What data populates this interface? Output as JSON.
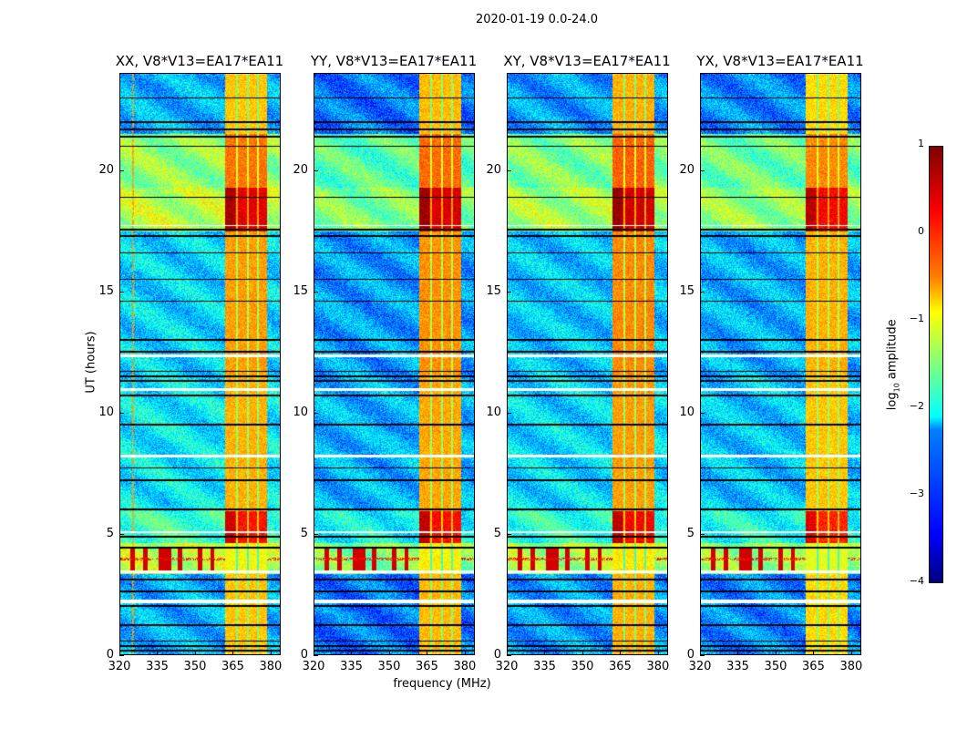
{
  "figure": {
    "title": "2020-01-19 0.0-24.0",
    "xlabel": "frequency (MHz)",
    "ylabel": "UT (hours)"
  },
  "colorbar": {
    "label": "log10 amplitude",
    "label_main": "log",
    "label_sub": "10",
    "label_rest": " amplitude",
    "ticks": [
      "1",
      "0",
      "−1",
      "−2",
      "−3",
      "−4"
    ],
    "tick_values": [
      1,
      0,
      -1,
      -2,
      -3,
      -4
    ],
    "range": [
      -4,
      1
    ],
    "colormap": "jet"
  },
  "chart_data": {
    "type": "heatmap",
    "title": "2020-01-19 0.0-24.0",
    "xlabel": "frequency (MHz)",
    "ylabel": "UT (hours)",
    "xlim": [
      320,
      384
    ],
    "ylim": [
      0,
      24
    ],
    "xticks": [
      "320",
      "335",
      "350",
      "365",
      "380"
    ],
    "xtick_values": [
      320,
      335,
      350,
      365,
      380
    ],
    "yticks": [
      "0",
      "5",
      "10",
      "15",
      "20"
    ],
    "ytick_values": [
      0,
      5,
      10,
      15,
      20
    ],
    "zlabel": "log10 amplitude",
    "zlim": [
      -4,
      1
    ],
    "rfi_band_mhz": [
      362,
      379
    ],
    "band_columns_mhz": [
      [
        362,
        366.5
      ],
      [
        367,
        371
      ],
      [
        371.5,
        375
      ],
      [
        375.5,
        379
      ]
    ],
    "time_segments": [
      {
        "hours": [
          0,
          3.3
        ],
        "background": -2.6,
        "band": -0.6
      },
      {
        "hours": [
          3.3,
          4.6
        ],
        "background": -1.3,
        "band": -0.9,
        "burst": true
      },
      {
        "hours": [
          4.6,
          5.9
        ],
        "background": -1.9,
        "band": 0.3
      },
      {
        "hours": [
          5.9,
          11.5
        ],
        "background": -2.3,
        "band": -0.5
      },
      {
        "hours": [
          11.5,
          17.5
        ],
        "background": -2.4,
        "band": -0.4
      },
      {
        "hours": [
          17.5,
          19.3
        ],
        "background": -1.3,
        "band": 0.5
      },
      {
        "hours": [
          19.3,
          21.5
        ],
        "background": -1.5,
        "band": -0.2
      },
      {
        "hours": [
          21.5,
          24
        ],
        "background": -2.6,
        "band": -0.6
      }
    ],
    "flagged_hours": [
      0.15,
      0.35,
      0.55,
      1.2,
      2.0,
      2.6,
      3.1,
      4.4,
      4.85,
      6.0,
      7.2,
      7.7,
      9.5,
      10.7,
      11.3,
      11.5,
      11.7,
      12.5,
      13.0,
      14.6,
      15.5,
      16.6,
      17.3,
      17.55,
      18.9,
      21.0,
      21.4,
      21.7,
      22.0,
      23.0
    ],
    "blank_hours": [
      [
        2.1,
        2.25
      ],
      [
        3.35,
        3.45
      ],
      [
        5.0,
        5.07
      ],
      [
        8.15,
        8.25
      ],
      [
        10.9,
        11.0
      ],
      [
        12.3,
        12.38
      ],
      [
        17.7,
        17.75
      ]
    ],
    "series": [
      {
        "name": "XX, V8*V13=EA17*EA11",
        "band_offset": 0.0,
        "bg_offset": 0.1
      },
      {
        "name": "YY, V8*V13=EA17*EA11",
        "band_offset": 0.05,
        "bg_offset": -0.2
      },
      {
        "name": "XY, V8*V13=EA17*EA11",
        "band_offset": 0.1,
        "bg_offset": 0.0
      },
      {
        "name": "YX, V8*V13=EA17*EA11",
        "band_offset": -0.1,
        "bg_offset": -0.1
      }
    ]
  }
}
